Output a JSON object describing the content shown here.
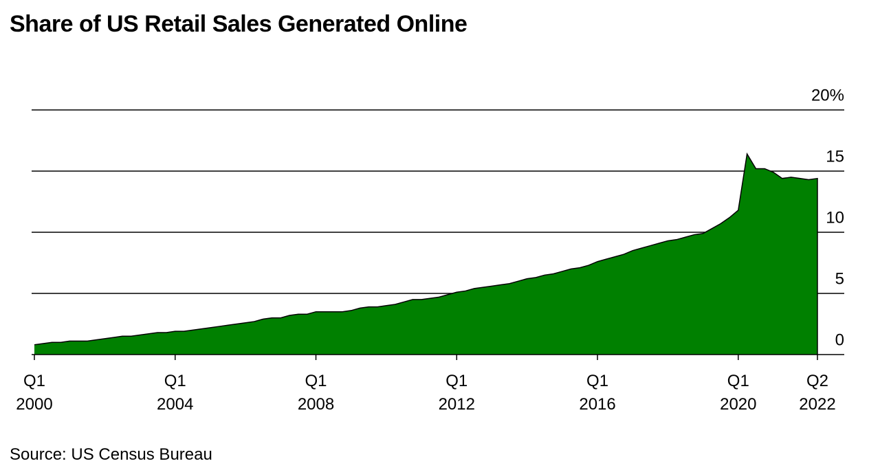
{
  "chart_data": {
    "type": "area",
    "title": "Share of US Retail Sales Generated Online",
    "source": "Source: US Census Bureau",
    "categories": [
      "Q1\n2000",
      null,
      null,
      null,
      null,
      null,
      null,
      null,
      null,
      null,
      null,
      null,
      null,
      null,
      null,
      null,
      "Q1\n2004",
      null,
      null,
      null,
      null,
      null,
      null,
      null,
      null,
      null,
      null,
      null,
      null,
      null,
      null,
      null,
      "Q1\n2008",
      null,
      null,
      null,
      null,
      null,
      null,
      null,
      null,
      null,
      null,
      null,
      null,
      null,
      null,
      null,
      "Q1\n2012",
      null,
      null,
      null,
      null,
      null,
      null,
      null,
      null,
      null,
      null,
      null,
      null,
      null,
      null,
      null,
      "Q1\n2016",
      null,
      null,
      null,
      null,
      null,
      null,
      null,
      null,
      null,
      null,
      null,
      null,
      null,
      null,
      null,
      "Q1\n2020",
      null,
      null,
      null,
      null,
      null,
      null,
      null,
      null,
      "Q2\n2022"
    ],
    "values": [
      0.8,
      0.9,
      1.0,
      1.0,
      1.1,
      1.1,
      1.1,
      1.2,
      1.3,
      1.4,
      1.5,
      1.5,
      1.6,
      1.7,
      1.8,
      1.8,
      1.9,
      1.9,
      2.0,
      2.1,
      2.2,
      2.3,
      2.4,
      2.5,
      2.6,
      2.7,
      2.9,
      3.0,
      3.0,
      3.2,
      3.3,
      3.3,
      3.5,
      3.5,
      3.5,
      3.5,
      3.6,
      3.8,
      3.9,
      3.9,
      4.0,
      4.1,
      4.3,
      4.5,
      4.5,
      4.6,
      4.7,
      4.9,
      5.1,
      5.2,
      5.4,
      5.5,
      5.6,
      5.7,
      5.8,
      6.0,
      6.2,
      6.3,
      6.5,
      6.6,
      6.8,
      7.0,
      7.1,
      7.3,
      7.6,
      7.8,
      8.0,
      8.2,
      8.5,
      8.7,
      8.9,
      9.1,
      9.3,
      9.4,
      9.6,
      9.8,
      9.9,
      10.3,
      10.7,
      11.2,
      11.8,
      16.4,
      15.2,
      15.2,
      14.9,
      14.4,
      14.5,
      14.4,
      14.3,
      14.4
    ],
    "color": "#008000",
    "ylim": [
      0,
      20
    ],
    "yticks": [
      0,
      5,
      10,
      15,
      {
        "value": 20,
        "label": "20%"
      }
    ],
    "grid": true
  }
}
